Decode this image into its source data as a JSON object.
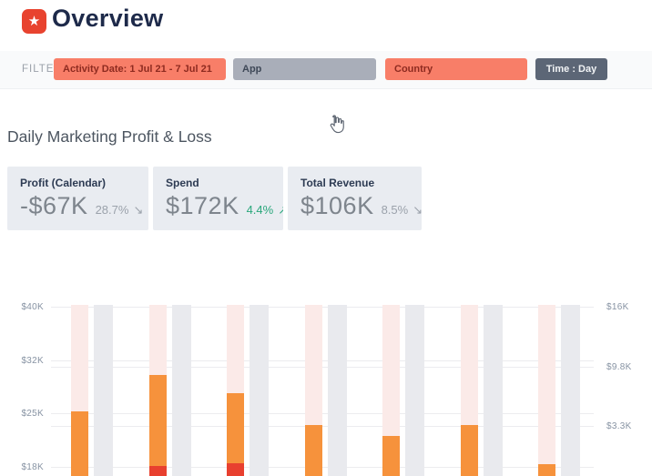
{
  "header": {
    "title": "Overview",
    "logo_icon": "star",
    "logo_color": "#e8432f"
  },
  "filter_bar": {
    "label": "FILTER",
    "chips": [
      {
        "label": "Activity Date: 1 Jul 21 - 7 Jul 21",
        "variant": "coral",
        "name": "filter-chip-activity-date"
      },
      {
        "label": "App",
        "variant": "gray",
        "name": "filter-chip-app",
        "hovered": true
      },
      {
        "label": "Country",
        "variant": "coral",
        "name": "filter-chip-country"
      },
      {
        "label": "Time : Day",
        "variant": "dark",
        "name": "filter-chip-time-granularity"
      }
    ]
  },
  "section": {
    "title": "Daily Marketing Profit & Loss"
  },
  "stats": [
    {
      "label": "Profit (Calendar)",
      "value": "-$67K",
      "change": "28.7%",
      "trend": "down"
    },
    {
      "label": "Spend",
      "value": "$172K",
      "change": "4.4%",
      "trend": "up"
    },
    {
      "label": "Total Revenue",
      "value": "$106K",
      "change": "8.5%",
      "trend": "down"
    }
  ],
  "colors": {
    "accent_red": "#e8432f",
    "coral_chip": "#f87e68",
    "gray_chip": "#a9aeb9",
    "dark_chip": "#5c6676",
    "bar_orange": "#f6923c",
    "bar_red": "#e8402f",
    "band_pink": "#fbeae8",
    "band_gray": "#e9eaee",
    "trend_green": "#2aa77b",
    "title_navy": "#1e2a4a"
  },
  "chart_data": {
    "type": "bar",
    "title": "Daily Marketing Profit & Loss",
    "categories": [
      "",
      "",
      "",
      "",
      "",
      "",
      ""
    ],
    "series": [
      {
        "name": "daily-value-bar",
        "color": "#f6923c",
        "values_k_usd": [
          25.2,
          30.1,
          27.6,
          23.4,
          22.0,
          23.4,
          18.4
        ]
      },
      {
        "name": "loss-segment",
        "color": "#e8402f",
        "visible_top_k_usd": [
          null,
          18.1,
          18.5,
          null,
          null,
          null,
          null
        ]
      }
    ],
    "background_columns": {
      "pink": "#fbeae8",
      "gray": "#e9eaee",
      "note_color_only": true
    },
    "left_axis": {
      "ticks": [
        "$40K",
        "$32K",
        "$25K",
        "$18K"
      ],
      "tick_values_k": [
        40,
        32,
        25,
        18
      ]
    },
    "right_axis": {
      "ticks": [
        "$16K",
        "$9.8K",
        "$3.3K"
      ]
    },
    "grid": true,
    "legend": false,
    "x_axis_labels_visible": false
  }
}
